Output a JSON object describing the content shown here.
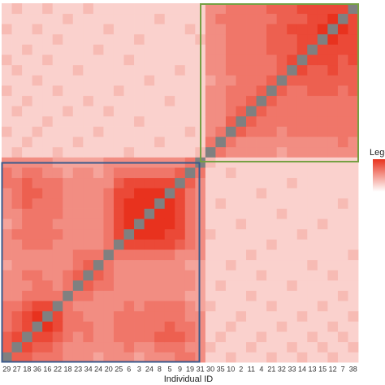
{
  "chart_data": {
    "type": "heatmap",
    "x_label": "Individual ID",
    "legend_title": "Legend",
    "na_color": "#808080",
    "low_color": "#ffffff",
    "high_color": "#e8321e",
    "categories": [
      "29",
      "27",
      "18",
      "36",
      "16",
      "22",
      "18",
      "23",
      "34",
      "24",
      "20",
      "25",
      "6",
      "3",
      "24",
      "8",
      "5",
      "9",
      "19",
      "31",
      "30",
      "35",
      "10",
      "2",
      "11",
      "4",
      "21",
      "32",
      "33",
      "14",
      "13",
      "15",
      "12",
      "7",
      "38"
    ],
    "z": [
      [
        null,
        7,
        7,
        6,
        6,
        6,
        5,
        5,
        5,
        4,
        5,
        5,
        5,
        4,
        5,
        5,
        5,
        6,
        6,
        5,
        2,
        2,
        3,
        2,
        2,
        2,
        3,
        2,
        2,
        3,
        2,
        2,
        3,
        2,
        2
      ],
      [
        7,
        null,
        8,
        7,
        7,
        6,
        5,
        5,
        5,
        5,
        5,
        5,
        6,
        5,
        5,
        6,
        6,
        6,
        5,
        5,
        3,
        2,
        2,
        2,
        3,
        2,
        2,
        2,
        3,
        2,
        2,
        3,
        2,
        2,
        3
      ],
      [
        7,
        8,
        null,
        8,
        8,
        7,
        6,
        5,
        6,
        5,
        5,
        6,
        6,
        6,
        6,
        7,
        7,
        7,
        6,
        5,
        2,
        3,
        2,
        2,
        2,
        3,
        2,
        2,
        2,
        2,
        3,
        2,
        2,
        3,
        2
      ],
      [
        6,
        7,
        8,
        null,
        9,
        8,
        6,
        6,
        6,
        5,
        5,
        6,
        6,
        6,
        6,
        6,
        7,
        6,
        6,
        5,
        2,
        2,
        3,
        2,
        2,
        2,
        2,
        3,
        2,
        2,
        2,
        2,
        3,
        2,
        2
      ],
      [
        6,
        7,
        8,
        9,
        null,
        8,
        6,
        6,
        5,
        5,
        5,
        6,
        6,
        6,
        6,
        6,
        6,
        6,
        5,
        5,
        2,
        2,
        2,
        3,
        2,
        2,
        2,
        2,
        2,
        3,
        2,
        2,
        2,
        2,
        3
      ],
      [
        6,
        6,
        7,
        8,
        8,
        null,
        6,
        5,
        5,
        5,
        5,
        5,
        6,
        5,
        6,
        6,
        6,
        6,
        5,
        4,
        3,
        2,
        2,
        2,
        2,
        2,
        3,
        2,
        2,
        2,
        2,
        3,
        2,
        2,
        2
      ],
      [
        5,
        5,
        6,
        6,
        6,
        6,
        null,
        6,
        6,
        5,
        5,
        5,
        5,
        5,
        5,
        5,
        5,
        5,
        4,
        4,
        2,
        2,
        2,
        2,
        3,
        2,
        2,
        2,
        2,
        2,
        2,
        2,
        2,
        3,
        2
      ],
      [
        5,
        5,
        5,
        6,
        6,
        5,
        6,
        null,
        7,
        6,
        6,
        5,
        5,
        5,
        5,
        5,
        5,
        5,
        5,
        4,
        2,
        3,
        2,
        2,
        2,
        2,
        2,
        2,
        3,
        2,
        2,
        2,
        2,
        2,
        2
      ],
      [
        5,
        5,
        6,
        6,
        5,
        5,
        6,
        7,
        null,
        7,
        6,
        5,
        5,
        5,
        5,
        5,
        5,
        5,
        5,
        4,
        2,
        2,
        2,
        2,
        2,
        3,
        2,
        2,
        2,
        2,
        2,
        2,
        3,
        2,
        2
      ],
      [
        4,
        5,
        5,
        5,
        5,
        5,
        5,
        6,
        7,
        null,
        6,
        5,
        5,
        5,
        5,
        5,
        5,
        5,
        4,
        4,
        2,
        2,
        3,
        2,
        2,
        2,
        2,
        2,
        2,
        2,
        3,
        2,
        2,
        2,
        2
      ],
      [
        5,
        5,
        5,
        5,
        5,
        5,
        5,
        6,
        6,
        6,
        null,
        6,
        6,
        6,
        6,
        6,
        6,
        5,
        5,
        5,
        2,
        2,
        2,
        2,
        3,
        2,
        2,
        2,
        2,
        2,
        2,
        2,
        2,
        2,
        3
      ],
      [
        5,
        5,
        6,
        6,
        6,
        5,
        5,
        5,
        5,
        5,
        6,
        null,
        8,
        8,
        8,
        8,
        8,
        7,
        6,
        5,
        2,
        2,
        2,
        2,
        2,
        2,
        3,
        2,
        2,
        2,
        2,
        2,
        2,
        2,
        2
      ],
      [
        5,
        6,
        6,
        6,
        6,
        6,
        5,
        5,
        5,
        5,
        6,
        8,
        null,
        9,
        9,
        9,
        8,
        8,
        6,
        5,
        3,
        2,
        2,
        2,
        2,
        2,
        2,
        2,
        2,
        3,
        2,
        2,
        2,
        2,
        2
      ],
      [
        4,
        5,
        6,
        6,
        6,
        5,
        5,
        5,
        5,
        5,
        6,
        8,
        9,
        null,
        9,
        9,
        9,
        8,
        6,
        5,
        2,
        2,
        2,
        3,
        2,
        2,
        2,
        2,
        2,
        2,
        2,
        3,
        2,
        2,
        2
      ],
      [
        5,
        5,
        6,
        6,
        6,
        6,
        5,
        5,
        5,
        5,
        6,
        8,
        9,
        9,
        null,
        9,
        9,
        8,
        6,
        5,
        2,
        2,
        2,
        2,
        2,
        2,
        2,
        3,
        2,
        2,
        2,
        2,
        2,
        2,
        2
      ],
      [
        5,
        6,
        7,
        6,
        6,
        6,
        5,
        5,
        5,
        5,
        6,
        8,
        9,
        9,
        9,
        null,
        9,
        8,
        6,
        5,
        2,
        3,
        2,
        2,
        2,
        2,
        2,
        2,
        2,
        2,
        2,
        2,
        2,
        3,
        2
      ],
      [
        5,
        6,
        7,
        7,
        6,
        6,
        5,
        5,
        5,
        5,
        6,
        8,
        8,
        9,
        9,
        9,
        null,
        8,
        6,
        5,
        2,
        2,
        2,
        2,
        2,
        3,
        2,
        2,
        2,
        2,
        2,
        2,
        2,
        2,
        2
      ],
      [
        6,
        6,
        7,
        6,
        6,
        6,
        5,
        5,
        5,
        5,
        5,
        7,
        8,
        8,
        8,
        8,
        8,
        null,
        7,
        5,
        2,
        2,
        2,
        2,
        2,
        2,
        2,
        2,
        3,
        2,
        2,
        2,
        2,
        2,
        2
      ],
      [
        6,
        5,
        6,
        6,
        5,
        5,
        4,
        5,
        5,
        4,
        5,
        6,
        6,
        6,
        6,
        6,
        6,
        7,
        null,
        6,
        2,
        2,
        3,
        2,
        2,
        2,
        2,
        2,
        2,
        2,
        2,
        2,
        2,
        2,
        2
      ],
      [
        5,
        5,
        5,
        5,
        5,
        4,
        4,
        4,
        4,
        4,
        5,
        5,
        5,
        5,
        5,
        5,
        5,
        5,
        6,
        null,
        3,
        2,
        2,
        2,
        2,
        2,
        2,
        2,
        2,
        2,
        2,
        2,
        2,
        2,
        2
      ],
      [
        2,
        3,
        2,
        2,
        2,
        3,
        2,
        2,
        2,
        2,
        2,
        2,
        3,
        2,
        2,
        2,
        2,
        2,
        2,
        3,
        null,
        6,
        5,
        5,
        5,
        5,
        5,
        4,
        5,
        5,
        5,
        5,
        5,
        5,
        5
      ],
      [
        2,
        2,
        3,
        2,
        2,
        2,
        2,
        3,
        2,
        2,
        2,
        2,
        2,
        2,
        2,
        3,
        2,
        2,
        2,
        2,
        6,
        null,
        6,
        5,
        5,
        5,
        5,
        5,
        5,
        5,
        5,
        5,
        5,
        6,
        5
      ],
      [
        3,
        2,
        2,
        3,
        2,
        2,
        2,
        2,
        2,
        3,
        2,
        2,
        2,
        2,
        2,
        2,
        2,
        2,
        3,
        2,
        5,
        6,
        null,
        7,
        6,
        6,
        6,
        5,
        6,
        6,
        6,
        6,
        6,
        6,
        6
      ],
      [
        2,
        2,
        2,
        2,
        3,
        2,
        2,
        2,
        2,
        2,
        2,
        2,
        2,
        3,
        2,
        2,
        2,
        2,
        2,
        2,
        5,
        5,
        7,
        null,
        7,
        6,
        6,
        6,
        6,
        6,
        6,
        6,
        6,
        6,
        6
      ],
      [
        2,
        3,
        2,
        2,
        2,
        2,
        3,
        2,
        2,
        2,
        3,
        2,
        2,
        2,
        2,
        2,
        2,
        2,
        2,
        2,
        5,
        5,
        6,
        7,
        null,
        7,
        6,
        6,
        6,
        6,
        6,
        6,
        6,
        6,
        6
      ],
      [
        2,
        2,
        3,
        2,
        2,
        2,
        2,
        2,
        3,
        2,
        2,
        2,
        2,
        2,
        2,
        2,
        3,
        2,
        2,
        2,
        5,
        5,
        6,
        6,
        7,
        null,
        7,
        6,
        6,
        6,
        6,
        6,
        6,
        6,
        6
      ],
      [
        3,
        2,
        2,
        2,
        2,
        3,
        2,
        2,
        2,
        2,
        2,
        3,
        2,
        2,
        2,
        2,
        2,
        2,
        2,
        2,
        5,
        5,
        6,
        6,
        6,
        7,
        null,
        7,
        6,
        6,
        7,
        7,
        7,
        6,
        7
      ],
      [
        2,
        2,
        2,
        3,
        2,
        2,
        2,
        2,
        2,
        2,
        2,
        2,
        2,
        2,
        3,
        2,
        2,
        2,
        2,
        2,
        4,
        5,
        5,
        6,
        6,
        6,
        7,
        null,
        7,
        7,
        7,
        7,
        7,
        7,
        7
      ],
      [
        2,
        3,
        2,
        2,
        2,
        2,
        2,
        3,
        2,
        2,
        2,
        2,
        2,
        2,
        2,
        2,
        2,
        3,
        2,
        2,
        5,
        5,
        6,
        6,
        6,
        6,
        6,
        7,
        null,
        8,
        7,
        7,
        8,
        7,
        7
      ],
      [
        3,
        2,
        2,
        2,
        3,
        2,
        2,
        2,
        2,
        2,
        2,
        2,
        3,
        2,
        2,
        2,
        2,
        2,
        2,
        2,
        5,
        5,
        6,
        6,
        6,
        6,
        6,
        7,
        8,
        null,
        8,
        8,
        8,
        7,
        8
      ],
      [
        2,
        2,
        3,
        2,
        2,
        2,
        2,
        2,
        2,
        3,
        2,
        2,
        2,
        2,
        2,
        2,
        2,
        2,
        2,
        2,
        5,
        5,
        6,
        6,
        6,
        6,
        7,
        7,
        7,
        8,
        null,
        8,
        8,
        8,
        8
      ],
      [
        2,
        2,
        2,
        2,
        2,
        3,
        2,
        2,
        2,
        2,
        2,
        2,
        2,
        3,
        2,
        2,
        2,
        2,
        2,
        3,
        5,
        5,
        6,
        6,
        6,
        6,
        7,
        7,
        7,
        8,
        8,
        null,
        9,
        8,
        8
      ],
      [
        3,
        2,
        2,
        3,
        2,
        2,
        2,
        2,
        2,
        2,
        3,
        2,
        2,
        2,
        2,
        2,
        2,
        2,
        3,
        2,
        5,
        5,
        6,
        6,
        6,
        6,
        7,
        7,
        8,
        8,
        8,
        9,
        null,
        9,
        8
      ],
      [
        2,
        2,
        2,
        2,
        2,
        2,
        3,
        2,
        2,
        2,
        2,
        2,
        2,
        2,
        2,
        3,
        2,
        2,
        2,
        2,
        5,
        6,
        6,
        6,
        6,
        6,
        6,
        7,
        7,
        7,
        8,
        8,
        9,
        null,
        8
      ],
      [
        2,
        3,
        2,
        2,
        3,
        2,
        2,
        2,
        3,
        2,
        2,
        2,
        2,
        2,
        2,
        2,
        2,
        2,
        2,
        2,
        5,
        5,
        6,
        6,
        6,
        6,
        7,
        7,
        7,
        8,
        8,
        8,
        8,
        8,
        null
      ]
    ]
  }
}
